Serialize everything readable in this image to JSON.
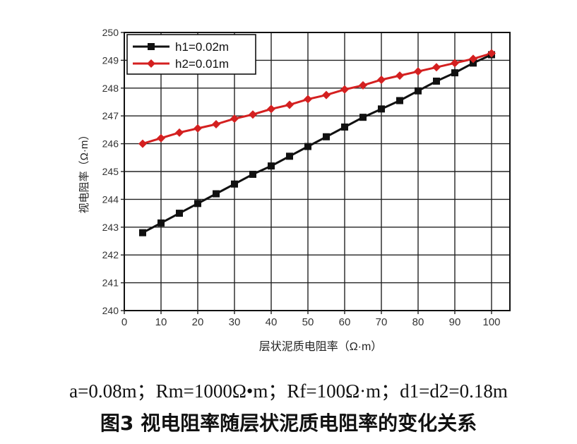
{
  "chart_data": {
    "type": "line",
    "xlabel": "层状泥质电阻率（Ω·m）",
    "ylabel": "视电阻率（Ω·m）",
    "xlim": [
      0,
      105
    ],
    "ylim": [
      240,
      250
    ],
    "xticks": [
      0,
      10,
      20,
      30,
      40,
      50,
      60,
      70,
      80,
      90,
      100
    ],
    "yticks": [
      240,
      241,
      242,
      243,
      244,
      245,
      246,
      247,
      248,
      249,
      250
    ],
    "grid": true,
    "legend_position": "top-left",
    "x": [
      5,
      10,
      15,
      20,
      25,
      30,
      35,
      40,
      45,
      50,
      55,
      60,
      65,
      70,
      75,
      80,
      85,
      90,
      95,
      100
    ],
    "series": [
      {
        "name": "h1=0.02m",
        "color": "#111111",
        "marker": "square",
        "values": [
          242.8,
          243.15,
          243.5,
          243.85,
          244.2,
          244.55,
          244.9,
          245.2,
          245.55,
          245.9,
          246.25,
          246.6,
          246.95,
          247.25,
          247.55,
          247.9,
          248.25,
          248.55,
          248.9,
          249.2
        ]
      },
      {
        "name": "h2=0.01m",
        "color": "#d42020",
        "marker": "diamond",
        "values": [
          246.0,
          246.2,
          246.4,
          246.55,
          246.7,
          246.9,
          247.05,
          247.25,
          247.4,
          247.6,
          247.75,
          247.95,
          248.1,
          248.3,
          248.45,
          248.6,
          248.75,
          248.9,
          249.05,
          249.25
        ]
      }
    ]
  },
  "caption": {
    "params": "a=0.08m；Rm=1000Ω•m；Rf=100Ω·m；d1=d2=0.18m",
    "title": "图3  视电阻率随层状泥质电阻率的变化关系"
  }
}
